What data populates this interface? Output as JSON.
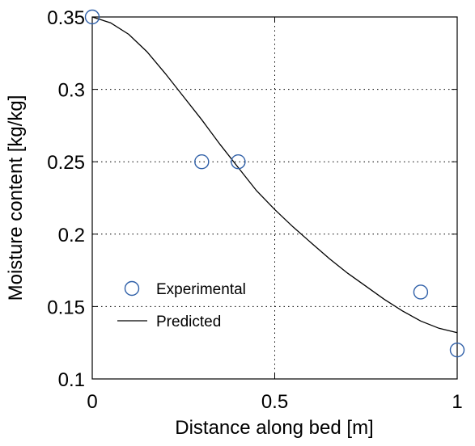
{
  "chart_data": {
    "type": "scatter",
    "title": "",
    "xlabel": "Distance along bed [m]",
    "ylabel": "Moisture content [kg/kg]",
    "xlim": [
      0,
      1
    ],
    "ylim": [
      0.1,
      0.35
    ],
    "xticks": [
      0,
      0.5,
      1
    ],
    "xtick_labels": [
      "0",
      "0.5",
      "1"
    ],
    "yticks": [
      0.1,
      0.15,
      0.2,
      0.25,
      0.3,
      0.35
    ],
    "ytick_labels": [
      "0.1",
      "0.15",
      "0.2",
      "0.25",
      "0.3",
      "0.35"
    ],
    "grid": "dotted",
    "legend_position": "lower-left",
    "series": [
      {
        "name": "Experimental",
        "marker": "circle",
        "color": "#3060a8",
        "x": [
          0.0,
          0.3,
          0.4,
          0.9,
          1.0
        ],
        "y": [
          0.35,
          0.25,
          0.25,
          0.16,
          0.12
        ]
      },
      {
        "name": "Predicted",
        "line": "solid",
        "color": "#000000",
        "x": [
          0.0,
          0.05,
          0.1,
          0.15,
          0.2,
          0.25,
          0.3,
          0.35,
          0.4,
          0.45,
          0.5,
          0.55,
          0.6,
          0.65,
          0.7,
          0.75,
          0.8,
          0.85,
          0.9,
          0.95,
          1.0
        ],
        "y": [
          0.35,
          0.346,
          0.338,
          0.326,
          0.311,
          0.295,
          0.279,
          0.262,
          0.246,
          0.23,
          0.217,
          0.205,
          0.194,
          0.183,
          0.173,
          0.164,
          0.155,
          0.147,
          0.14,
          0.135,
          0.132
        ]
      }
    ]
  }
}
